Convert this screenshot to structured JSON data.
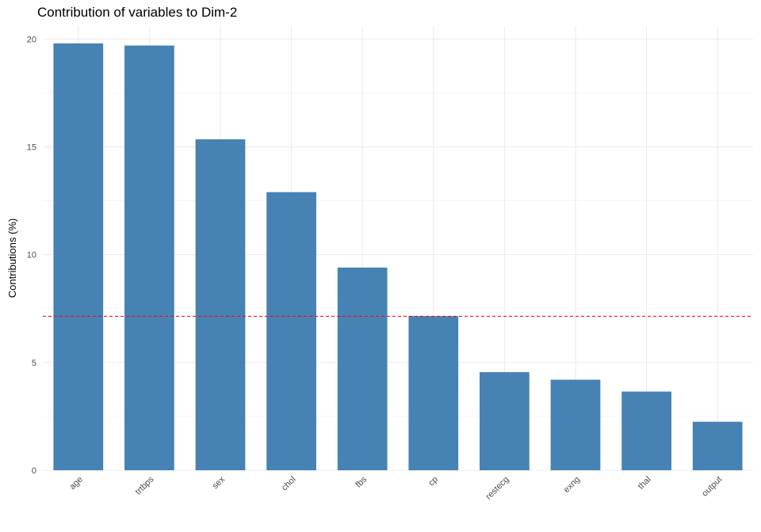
{
  "chart_data": {
    "type": "bar",
    "title": "Contribution of variables to Dim-2",
    "xlabel": "",
    "ylabel": "Contributions (%)",
    "categories": [
      "age",
      "trtbps",
      "sex",
      "chol",
      "fbs",
      "cp",
      "restecg",
      "exng",
      "thal",
      "output"
    ],
    "values": [
      19.8,
      19.7,
      15.35,
      12.9,
      9.4,
      7.15,
      4.55,
      4.2,
      3.65,
      2.25
    ],
    "ylim": [
      0,
      20.6
    ],
    "yticks": [
      0,
      5,
      10,
      15,
      20
    ],
    "reference_line": 7.14,
    "bar_color": "#4682B4",
    "reference_line_color": "#FF0000",
    "grid": true,
    "legend": "none"
  }
}
